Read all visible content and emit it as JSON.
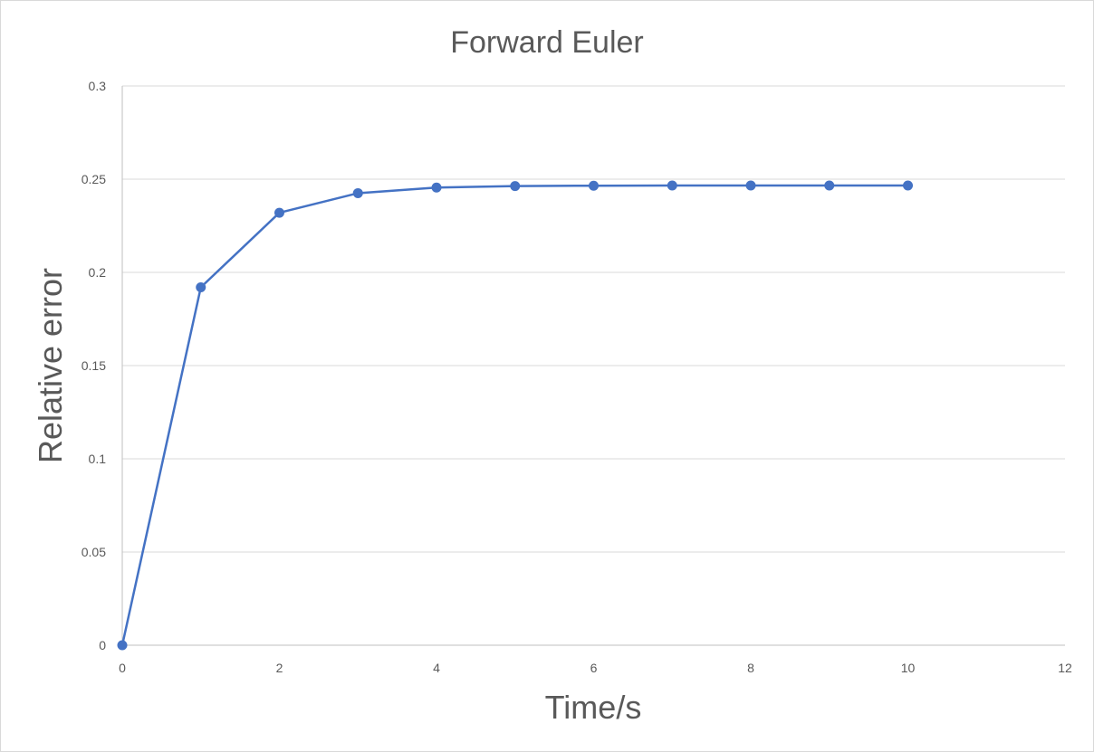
{
  "chart_data": {
    "type": "scatter",
    "title": "Forward Euler",
    "xlabel": "Time/s",
    "ylabel": "Relative error",
    "xlim": [
      0,
      12
    ],
    "ylim": [
      0,
      0.3
    ],
    "x_ticks": [
      "0",
      "2",
      "4",
      "6",
      "8",
      "10",
      "12"
    ],
    "y_ticks": [
      "0",
      "0.05",
      "0.1",
      "0.15",
      "0.2",
      "0.25",
      "0.3"
    ],
    "grid": true,
    "lines_with_markers": true,
    "series": [
      {
        "color": "#4472c4",
        "x": [
          0,
          1,
          2,
          3,
          4,
          5,
          6,
          7,
          8,
          9,
          10
        ],
        "y": [
          0,
          0.192,
          0.232,
          0.2425,
          0.2455,
          0.2463,
          0.2465,
          0.2466,
          0.2466,
          0.2466,
          0.2466
        ]
      }
    ]
  }
}
